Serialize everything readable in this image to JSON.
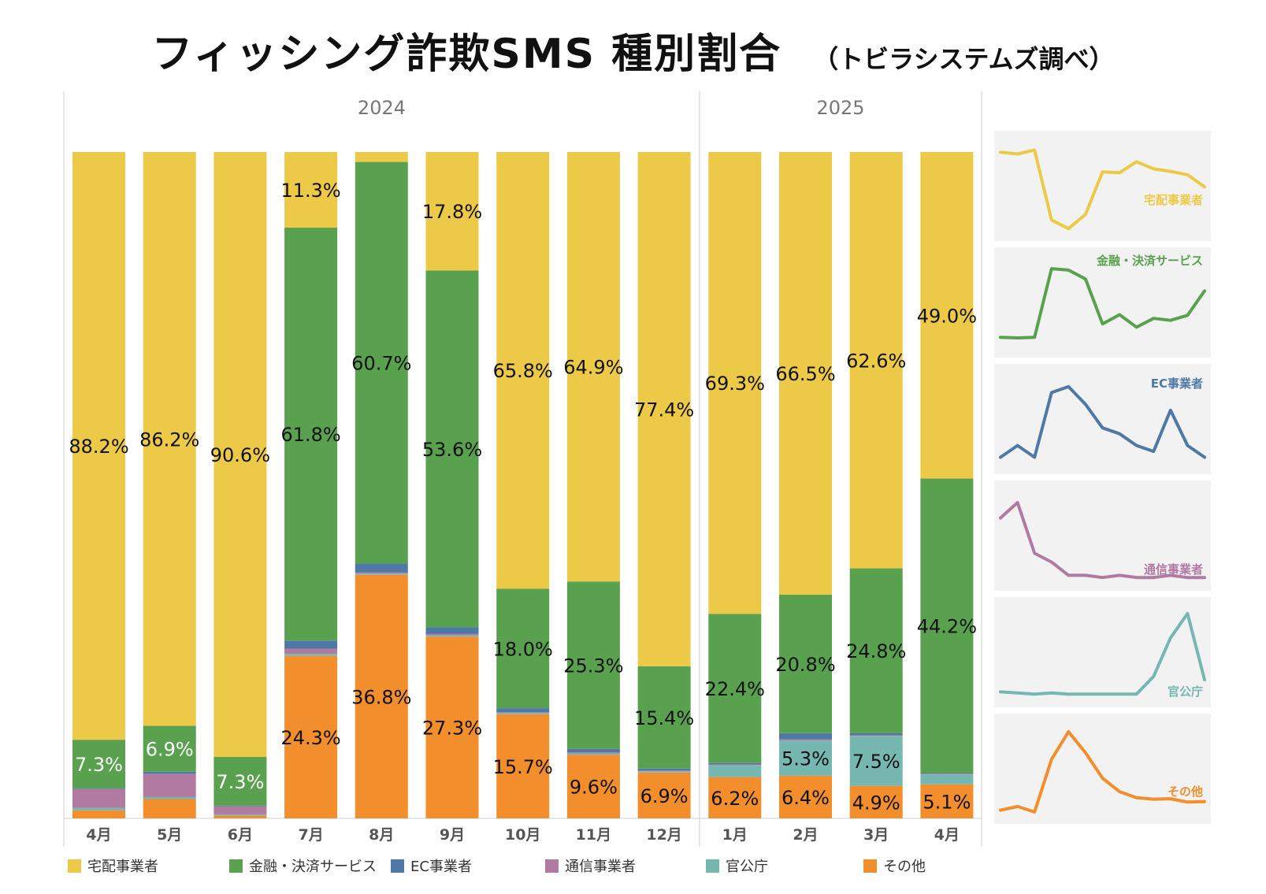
{
  "header": {
    "title": "フィッシング詐欺SMS 種別割合",
    "subtitle": "（トビラシステムズ調べ）"
  },
  "chart_data": {
    "type": "bar",
    "stacked": true,
    "title": "フィッシング詐欺SMS 種別割合",
    "subtitle": "（トビラシステムズ調べ）",
    "ylim": [
      0,
      100
    ],
    "years": [
      {
        "label": "2024",
        "count": 9
      },
      {
        "label": "2025",
        "count": 4
      }
    ],
    "categories": [
      "4月",
      "5月",
      "6月",
      "7月",
      "8月",
      "9月",
      "10月",
      "11月",
      "12月",
      "1月",
      "2月",
      "3月",
      "4月"
    ],
    "series": [
      {
        "name": "その他",
        "color": "#f28e2b",
        "values": [
          1.2,
          2.9,
          0.4,
          24.3,
          36.8,
          27.3,
          15.7,
          9.6,
          6.9,
          6.2,
          6.4,
          4.9,
          5.1
        ],
        "labels": [
          null,
          null,
          null,
          "24.3%",
          "36.8%",
          "27.3%",
          "15.7%",
          "9.6%",
          "6.9%",
          "6.2%",
          "6.4%",
          "4.9%",
          "5.1%"
        ]
      },
      {
        "name": "官公庁",
        "color": "#76b7b2",
        "values": [
          0.4,
          0.3,
          0.2,
          0.3,
          0.2,
          0.2,
          0.2,
          0.2,
          0.2,
          1.8,
          5.3,
          7.5,
          1.5
        ],
        "labels": [
          null,
          null,
          null,
          null,
          null,
          null,
          null,
          null,
          null,
          null,
          "5.3%",
          "7.5%",
          null
        ]
      },
      {
        "name": "通信事業者",
        "color": "#b07aa1",
        "values": [
          2.8,
          3.5,
          1.2,
          0.8,
          0.2,
          0.2,
          0.1,
          0.2,
          0.1,
          0.1,
          0.2,
          0.1,
          0.1
        ],
        "labels": [
          null,
          null,
          null,
          null,
          null,
          null,
          null,
          null,
          null,
          null,
          null,
          null,
          null
        ]
      },
      {
        "name": "EC事業者",
        "color": "#4e79a7",
        "values": [
          0.1,
          0.3,
          0.1,
          1.2,
          1.3,
          1.0,
          0.6,
          0.5,
          0.3,
          0.2,
          0.9,
          0.3,
          0.1
        ],
        "labels": [
          null,
          null,
          null,
          null,
          null,
          null,
          null,
          null,
          null,
          null,
          null,
          null,
          null
        ]
      },
      {
        "name": "金融・決済サービス",
        "color": "#59a14f",
        "values": [
          7.3,
          6.9,
          7.3,
          61.8,
          60.7,
          53.6,
          18.0,
          25.3,
          15.4,
          22.4,
          20.8,
          24.8,
          44.2
        ],
        "labels": [
          "7.3%",
          "6.9%",
          "7.3%",
          "61.8%",
          "60.7%",
          "53.6%",
          "18.0%",
          "25.3%",
          "15.4%",
          "22.4%",
          "20.8%",
          "24.8%",
          "44.2%"
        ]
      },
      {
        "name": "宅配事業者",
        "color": "#edc948",
        "values": [
          88.2,
          86.2,
          90.6,
          11.3,
          1.5,
          17.8,
          65.8,
          64.9,
          77.4,
          69.3,
          66.5,
          62.6,
          49.0
        ],
        "labels": [
          "88.2%",
          "86.2%",
          "90.6%",
          "11.3%",
          null,
          "17.8%",
          "65.8%",
          "64.9%",
          "77.4%",
          "69.3%",
          "66.5%",
          "62.6%",
          "49.0%"
        ]
      }
    ],
    "legend": [
      "宅配事業者",
      "金融・決済サービス",
      "EC事業者",
      "通信事業者",
      "官公庁",
      "その他"
    ],
    "legend_placement": "bottom",
    "sparklines": [
      {
        "name": "宅配事業者",
        "label": "宅配事業者",
        "color": "#edc948",
        "range": [
          0,
          100
        ]
      },
      {
        "name": "金融・決済サービス",
        "label": "金融・決済サービス",
        "color": "#59a14f",
        "range": [
          0,
          70
        ]
      },
      {
        "name": "EC事業者",
        "label": "EC事業者",
        "color": "#4e79a7",
        "range": [
          0,
          1.5
        ]
      },
      {
        "name": "通信事業者",
        "label": "通信事業者",
        "color": "#b07aa1",
        "range": [
          0,
          4
        ]
      },
      {
        "name": "官公庁",
        "label": "官公庁",
        "color": "#76b7b2",
        "range": [
          0,
          8
        ]
      },
      {
        "name": "その他",
        "label": "その他",
        "color": "#f28e2b",
        "range": [
          0,
          40
        ]
      }
    ]
  }
}
